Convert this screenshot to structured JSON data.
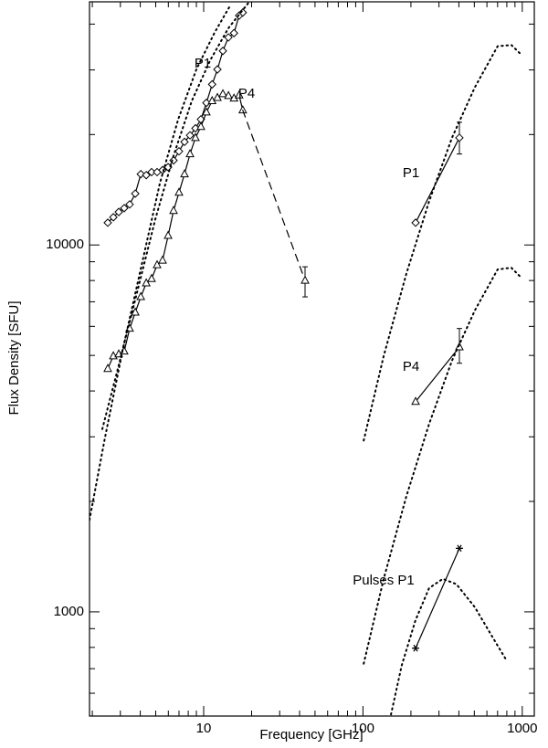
{
  "chart_data": {
    "type": "line",
    "xlabel": "Frequency [GHz]",
    "ylabel": "Flux Density [SFU]",
    "xlog": true,
    "ylog": true,
    "xlim": [
      1.92,
      1190
    ],
    "ylim": [
      520,
      46000
    ],
    "xticks": [
      10,
      100,
      1000
    ],
    "yticks": [
      1000,
      10000
    ],
    "xminor": [
      2,
      3,
      4,
      5,
      6,
      7,
      8,
      9,
      20,
      30,
      40,
      50,
      60,
      70,
      80,
      90,
      200,
      300,
      400,
      500,
      600,
      700,
      800,
      900
    ],
    "yminor": [
      600,
      700,
      800,
      900,
      2000,
      3000,
      4000,
      5000,
      6000,
      7000,
      8000,
      9000,
      20000,
      30000,
      40000
    ],
    "annotations": [
      "P1",
      "P4",
      "P1",
      "P4",
      "Pulses P1"
    ],
    "series": [
      {
        "color": "#000000",
        "style": "solid",
        "marker": "diamond",
        "x": [
          2.5,
          2.71,
          2.93,
          3.17,
          3.43,
          3.72,
          4.03,
          4.36,
          4.71,
          5.1,
          5.52,
          5.98,
          6.47,
          7.0,
          7.58,
          8.21,
          8.88,
          9.61,
          10.4,
          11.3,
          12.2,
          13.2,
          14.3,
          15.5,
          16.7,
          17.6
        ],
        "values": [
          11500,
          11900,
          12300,
          12600,
          12900,
          13800,
          15600,
          15500,
          15800,
          15800,
          16000,
          16300,
          17000,
          18000,
          19100,
          19900,
          20800,
          22000,
          24400,
          27400,
          30100,
          33800,
          36800,
          37800,
          42200,
          43000
        ]
      },
      {
        "color": "#000000",
        "style": "solid",
        "marker": "triangle",
        "x": [
          2.5,
          2.71,
          2.93,
          3.17,
          3.43,
          3.72,
          4.03,
          4.36,
          4.71,
          5.1,
          5.52,
          5.98,
          6.47,
          7.0,
          7.58,
          8.21,
          8.88,
          9.61,
          10.4,
          11.3,
          12.2,
          13.2,
          14.3,
          15.5,
          16.7,
          17.6
        ],
        "values": [
          4600,
          4980,
          5040,
          5130,
          5920,
          6550,
          7220,
          7870,
          8090,
          8820,
          9080,
          10600,
          12400,
          13900,
          15600,
          17700,
          19600,
          21000,
          23000,
          24700,
          25200,
          25800,
          25500,
          25100,
          25600,
          23300
        ]
      },
      {
        "color": "#000000",
        "style": "dashed",
        "marker": "triangle-last",
        "x": [
          17.6,
          43.3
        ],
        "values": [
          23300,
          8000
        ],
        "err_low": [
          null,
          7220
        ],
        "err_high": [
          null,
          8720
        ]
      },
      {
        "color": "#000000",
        "style": "solid",
        "marker": "diamond",
        "x": [
          214,
          403
        ],
        "values": [
          11500,
          19600
        ],
        "err_low": [
          null,
          17700
        ],
        "err_high": [
          null,
          21600
        ]
      },
      {
        "color": "#000000",
        "style": "solid",
        "marker": "triangle",
        "x": [
          214,
          403
        ],
        "values": [
          3740,
          5270
        ],
        "err_low": [
          null,
          4760
        ],
        "err_high": [
          null,
          5920
        ]
      },
      {
        "color": "#000000",
        "style": "solid",
        "marker": "asterisk",
        "x": [
          214,
          403
        ],
        "values": [
          796,
          1490
        ]
      },
      {
        "color": "#000000",
        "style": "dotted",
        "marker": "none",
        "x": [
          1.92,
          2.4,
          3.13,
          4.08,
          5.31,
          6.92,
          9.0,
          11.7,
          14.7
        ],
        "values": [
          1780,
          2980,
          5270,
          8820,
          14750,
          22000,
          30100,
          37900,
          45000
        ]
      },
      {
        "color": "#000000",
        "style": "dotted",
        "marker": "none",
        "x": [
          2.31,
          2.93,
          3.82,
          4.97,
          6.47,
          8.42,
          11.0,
          14.3,
          19.1
        ],
        "values": [
          3150,
          4700,
          7430,
          11740,
          17500,
          24700,
          31900,
          39000,
          45700
        ]
      },
      {
        "color": "#000000",
        "style": "dotted",
        "marker": "none",
        "x": [
          101,
          135,
          187,
          260,
          362,
          504,
          700,
          853,
          974
        ],
        "values": [
          2930,
          4980,
          8330,
          13150,
          19600,
          26900,
          34800,
          35100,
          33200
        ]
      },
      {
        "color": "#000000",
        "style": "dotted",
        "marker": "none",
        "x": [
          101,
          135,
          187,
          260,
          362,
          504,
          700,
          853,
          974
        ],
        "values": [
          722,
          1230,
          2060,
          3250,
          4840,
          6630,
          8570,
          8670,
          8190
        ]
      },
      {
        "color": "#000000",
        "style": "dotted",
        "marker": "none",
        "x": [
          150,
          175,
          214,
          260,
          317,
          386,
          504,
          656,
          800
        ],
        "values": [
          525,
          714,
          950,
          1160,
          1230,
          1190,
          1030,
          848,
          735
        ]
      }
    ]
  }
}
